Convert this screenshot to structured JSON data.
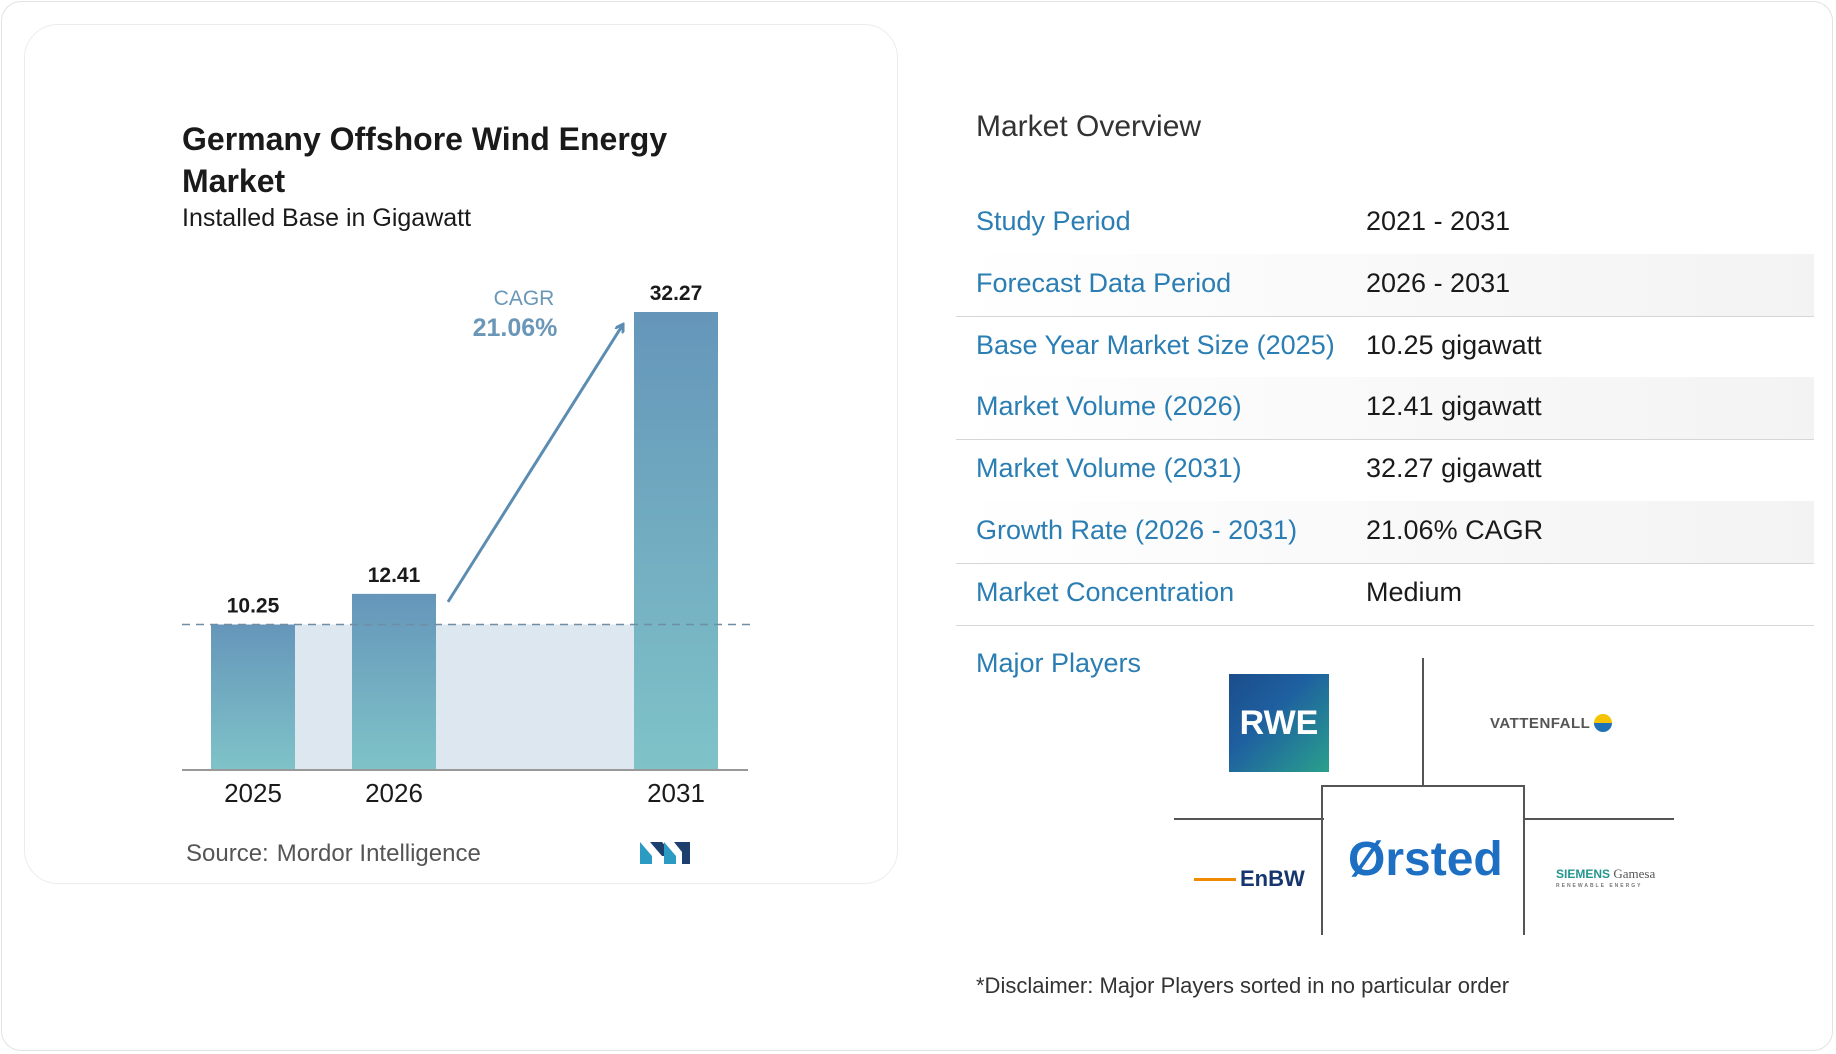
{
  "chart_data": {
    "type": "bar",
    "title": "Germany Offshore Wind Energy Market",
    "subtitle": "Installed Base in Gigawatt",
    "categories": [
      "2025",
      "2026",
      "2031"
    ],
    "values": [
      10.25,
      12.41,
      32.27
    ],
    "value_labels": [
      "10.25",
      "12.41",
      "32.27"
    ],
    "annotation": {
      "label": "CAGR",
      "value": "21.06%"
    },
    "baseline_reference": 10.25,
    "colors": {
      "bar_top": "#6596ba",
      "bar_bottom": "#7fc3c8",
      "shade": "#dde7ef",
      "arrow": "#5b8db3",
      "cagr_label": "#6a97b8"
    }
  },
  "source": {
    "label": "Source:",
    "value": "Mordor Intelligence"
  },
  "overview": {
    "title": "Market Overview",
    "rows": [
      {
        "key": "Study Period",
        "value": "2021 - 2031"
      },
      {
        "key": "Forecast Data Period",
        "value": "2026 - 2031"
      },
      {
        "key": "Base Year Market Size (2025)",
        "value": "10.25 gigawatt"
      },
      {
        "key": "Market Volume (2026)",
        "value": "12.41 gigawatt"
      },
      {
        "key": "Market Volume (2031)",
        "value": "32.27 gigawatt"
      },
      {
        "key": "Growth Rate (2026 - 2031)",
        "value": "21.06% CAGR"
      },
      {
        "key": "Market Concentration",
        "value": "Medium"
      }
    ]
  },
  "players": {
    "label": "Major Players",
    "logos": {
      "rwe": "RWE",
      "vattenfall": "VATTENFALL",
      "enbw": "EnBW",
      "orsted": "Ørsted",
      "siemens_a": "SIEMENS",
      "siemens_b": "Gamesa",
      "siemens_sub": "RENEWABLE ENERGY"
    }
  },
  "disclaimer": "*Disclaimer: Major Players sorted in no particular order",
  "brand_icon": "mordor-intelligence-logo-icon"
}
